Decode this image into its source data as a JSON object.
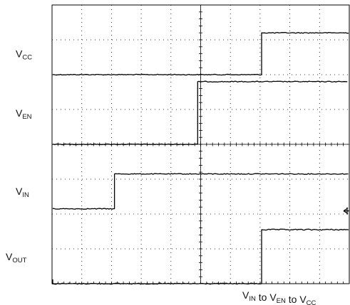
{
  "chart_data": {
    "type": "line",
    "title": "",
    "xlabel": "",
    "ylabel": "",
    "caption": {
      "parts": [
        {
          "base": "V",
          "sub": "IN"
        },
        {
          "text": " to "
        },
        {
          "base": "V",
          "sub": "EN"
        },
        {
          "text": " to "
        },
        {
          "base": "V",
          "sub": "CC"
        }
      ]
    },
    "divisions": {
      "x": 10,
      "y": 8
    },
    "grid": true,
    "ground_marker": "arrow-left",
    "series": [
      {
        "name": "CC",
        "label_base": "V",
        "label_sub": "CC",
        "low_div": 0.0,
        "high_div": 1.2,
        "low_level_div": 6.0,
        "edge_div": 7.05
      },
      {
        "name": "EN",
        "label_base": "V",
        "label_sub": "EN",
        "low_div": 0.0,
        "high_div": 1.8,
        "low_level_div": 4.0,
        "edge_div": 4.9
      },
      {
        "name": "IN",
        "label_base": "V",
        "label_sub": "IN",
        "low_div": 0.0,
        "high_div": 1.0,
        "low_level_div": 2.15,
        "edge_div": 2.1
      },
      {
        "name": "OUT",
        "label_base": "V",
        "label_sub": "OUT",
        "low_div": 0.0,
        "high_div": 1.55,
        "low_level_div": 0.0,
        "edge_div": 7.05
      }
    ]
  }
}
